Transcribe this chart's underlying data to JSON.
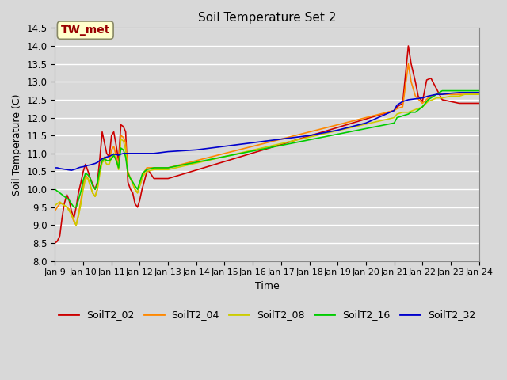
{
  "title": "Soil Temperature Set 2",
  "xlabel": "Time",
  "ylabel": "Soil Temperature (C)",
  "ylim": [
    8.0,
    14.5
  ],
  "background_color": "#d8d8d8",
  "plot_bg_color": "#d8d8d8",
  "grid_color": "#ffffff",
  "annotation_text": "TW_met",
  "annotation_color": "#990000",
  "annotation_bg": "#ffffcc",
  "series": {
    "SoilT2_02": {
      "color": "#cc0000",
      "times": [
        9.0,
        9.08,
        9.17,
        9.25,
        9.33,
        9.42,
        9.5,
        9.58,
        9.67,
        9.75,
        9.83,
        9.92,
        10.0,
        10.08,
        10.17,
        10.25,
        10.33,
        10.42,
        10.5,
        10.58,
        10.67,
        10.75,
        10.83,
        10.92,
        11.0,
        11.08,
        11.17,
        11.25,
        11.33,
        11.42,
        11.5,
        11.58,
        11.67,
        11.75,
        11.83,
        11.92,
        12.0,
        12.08,
        12.17,
        12.25,
        12.33,
        12.5,
        13.0,
        21.0,
        21.1,
        21.3,
        21.5,
        21.6,
        21.75,
        21.85,
        22.0,
        22.15,
        22.3,
        22.5,
        22.7,
        23.0,
        23.3,
        23.5,
        23.7,
        24.0
      ],
      "values": [
        8.5,
        8.55,
        8.7,
        9.2,
        9.6,
        9.85,
        9.7,
        9.4,
        9.2,
        9.5,
        9.9,
        10.2,
        10.5,
        10.7,
        10.5,
        10.3,
        10.15,
        10.0,
        10.2,
        10.8,
        11.6,
        11.3,
        11.0,
        10.9,
        11.5,
        11.6,
        11.2,
        10.8,
        11.8,
        11.75,
        11.6,
        10.2,
        10.0,
        9.9,
        9.6,
        9.5,
        9.7,
        10.0,
        10.25,
        10.5,
        10.5,
        10.3,
        10.3,
        12.2,
        12.3,
        12.4,
        14.0,
        13.5,
        13.0,
        12.6,
        12.45,
        13.05,
        13.1,
        12.8,
        12.5,
        12.45,
        12.4,
        12.4,
        12.4,
        12.4
      ]
    },
    "SoilT2_04": {
      "color": "#ff8800",
      "times": [
        9.0,
        9.08,
        9.17,
        9.25,
        9.33,
        9.42,
        9.5,
        9.58,
        9.67,
        9.75,
        9.83,
        9.92,
        10.0,
        10.08,
        10.17,
        10.25,
        10.33,
        10.42,
        10.5,
        10.58,
        10.67,
        10.75,
        10.83,
        10.92,
        11.0,
        11.08,
        11.17,
        11.25,
        11.33,
        11.42,
        11.5,
        11.58,
        11.67,
        11.75,
        11.83,
        11.92,
        12.0,
        12.08,
        12.17,
        12.25,
        12.5,
        13.0,
        21.0,
        21.1,
        21.3,
        21.5,
        21.6,
        21.75,
        22.0,
        22.2,
        22.5,
        22.7,
        23.0,
        23.3,
        23.5,
        23.7,
        24.0
      ],
      "values": [
        9.4,
        9.5,
        9.6,
        9.6,
        9.55,
        9.5,
        9.45,
        9.3,
        9.1,
        9.0,
        9.3,
        9.7,
        10.1,
        10.4,
        10.3,
        10.1,
        9.9,
        9.8,
        10.0,
        10.5,
        10.8,
        10.9,
        10.8,
        10.8,
        11.1,
        11.2,
        10.9,
        10.6,
        11.5,
        11.45,
        11.3,
        10.5,
        10.3,
        10.15,
        10.0,
        9.9,
        10.1,
        10.3,
        10.5,
        10.6,
        10.6,
        10.6,
        12.2,
        12.25,
        12.3,
        13.5,
        13.0,
        12.6,
        12.4,
        12.55,
        12.65,
        12.65,
        12.65,
        12.65,
        12.65,
        12.65,
        12.65
      ]
    },
    "SoilT2_08": {
      "color": "#cccc00",
      "times": [
        9.0,
        9.08,
        9.17,
        9.25,
        9.33,
        9.42,
        9.5,
        9.58,
        9.67,
        9.75,
        9.83,
        9.92,
        10.0,
        10.08,
        10.17,
        10.25,
        10.33,
        10.42,
        10.5,
        10.58,
        10.67,
        10.75,
        10.83,
        10.92,
        11.0,
        11.08,
        11.17,
        11.25,
        11.33,
        11.42,
        11.5,
        11.58,
        11.67,
        11.75,
        11.83,
        11.92,
        12.0,
        12.1,
        12.25,
        12.5,
        13.0,
        21.0,
        21.1,
        21.3,
        21.5,
        22.0,
        22.2,
        22.5,
        22.7,
        23.0,
        23.3,
        23.5,
        23.7,
        24.0
      ],
      "values": [
        9.55,
        9.6,
        9.65,
        9.6,
        9.55,
        9.5,
        9.4,
        9.3,
        9.15,
        9.0,
        9.25,
        9.6,
        10.0,
        10.3,
        10.3,
        10.1,
        9.9,
        9.8,
        10.0,
        10.4,
        10.75,
        10.8,
        10.7,
        10.7,
        10.9,
        11.0,
        10.8,
        10.55,
        11.4,
        11.35,
        11.1,
        10.4,
        10.3,
        10.2,
        10.0,
        9.9,
        10.1,
        10.35,
        10.5,
        10.55,
        10.55,
        12.0,
        12.1,
        12.15,
        12.15,
        12.3,
        12.45,
        12.55,
        12.55,
        12.6,
        12.6,
        12.65,
        12.65,
        12.65
      ]
    },
    "SoilT2_16": {
      "color": "#00cc00",
      "times": [
        9.0,
        9.08,
        9.17,
        9.25,
        9.33,
        9.42,
        9.5,
        9.58,
        9.67,
        9.75,
        9.83,
        9.92,
        10.0,
        10.08,
        10.17,
        10.25,
        10.33,
        10.42,
        10.5,
        10.58,
        10.67,
        10.75,
        10.83,
        10.92,
        11.0,
        11.08,
        11.17,
        11.25,
        11.33,
        11.42,
        11.5,
        11.58,
        11.67,
        11.75,
        11.83,
        11.92,
        12.0,
        12.1,
        12.25,
        12.5,
        13.0,
        21.0,
        21.1,
        21.5,
        21.6,
        21.75,
        22.0,
        22.2,
        22.5,
        22.7,
        23.0,
        23.3,
        23.5,
        23.7,
        24.0
      ],
      "values": [
        10.0,
        9.95,
        9.9,
        9.85,
        9.8,
        9.75,
        9.7,
        9.6,
        9.5,
        9.5,
        9.7,
        9.95,
        10.25,
        10.45,
        10.4,
        10.3,
        10.1,
        10.0,
        10.15,
        10.55,
        10.8,
        10.85,
        10.8,
        10.8,
        10.85,
        10.95,
        10.8,
        10.6,
        11.15,
        11.1,
        10.9,
        10.45,
        10.3,
        10.2,
        10.1,
        10.0,
        10.2,
        10.45,
        10.55,
        10.6,
        10.6,
        11.85,
        12.0,
        12.1,
        12.15,
        12.15,
        12.3,
        12.5,
        12.65,
        12.75,
        12.75,
        12.75,
        12.75,
        12.75,
        12.75
      ]
    },
    "SoilT2_32": {
      "color": "#0000cc",
      "times": [
        9.0,
        9.08,
        9.17,
        9.25,
        9.33,
        9.42,
        9.5,
        9.58,
        9.67,
        9.75,
        9.83,
        9.92,
        10.0,
        10.08,
        10.17,
        10.25,
        10.33,
        10.42,
        10.5,
        10.58,
        10.67,
        10.75,
        10.83,
        10.92,
        11.0,
        11.08,
        11.17,
        11.25,
        11.33,
        11.42,
        11.5,
        11.58,
        11.67,
        11.75,
        11.83,
        11.92,
        12.0,
        12.1,
        12.25,
        12.5,
        13.0,
        14.0,
        15.0,
        16.0,
        17.0,
        18.0,
        19.0,
        20.0,
        21.0,
        21.1,
        21.3,
        21.5,
        22.0,
        22.2,
        22.5,
        22.7,
        23.0,
        23.3,
        23.5,
        23.7,
        24.0
      ],
      "values": [
        10.6,
        10.6,
        10.58,
        10.57,
        10.56,
        10.55,
        10.54,
        10.53,
        10.55,
        10.57,
        10.6,
        10.62,
        10.63,
        10.65,
        10.67,
        10.68,
        10.7,
        10.72,
        10.75,
        10.8,
        10.85,
        10.88,
        10.9,
        10.92,
        10.95,
        10.98,
        10.97,
        10.95,
        10.98,
        11.0,
        11.0,
        11.0,
        11.0,
        11.0,
        11.0,
        11.0,
        11.0,
        11.0,
        11.0,
        11.0,
        11.05,
        11.1,
        11.2,
        11.3,
        11.4,
        11.5,
        11.65,
        11.85,
        12.2,
        12.35,
        12.45,
        12.5,
        12.55,
        12.6,
        12.65,
        12.65,
        12.68,
        12.7,
        12.7,
        12.7,
        12.7
      ]
    }
  },
  "xtick_labels": [
    "Jan 9",
    "Jan 10",
    "Jan 11",
    "Jan 12",
    "Jan 13",
    "Jan 14",
    "Jan 15",
    "Jan 16",
    "Jan 17",
    "Jan 18",
    "Jan 19",
    "Jan 20",
    "Jan 21",
    "Jan 22",
    "Jan 23",
    "Jan 24"
  ],
  "xtick_positions": [
    9,
    10,
    11,
    12,
    13,
    14,
    15,
    16,
    17,
    18,
    19,
    20,
    21,
    22,
    23,
    24
  ],
  "ytick_positions": [
    8.0,
    8.5,
    9.0,
    9.5,
    10.0,
    10.5,
    11.0,
    11.5,
    12.0,
    12.5,
    13.0,
    13.5,
    14.0,
    14.5
  ]
}
